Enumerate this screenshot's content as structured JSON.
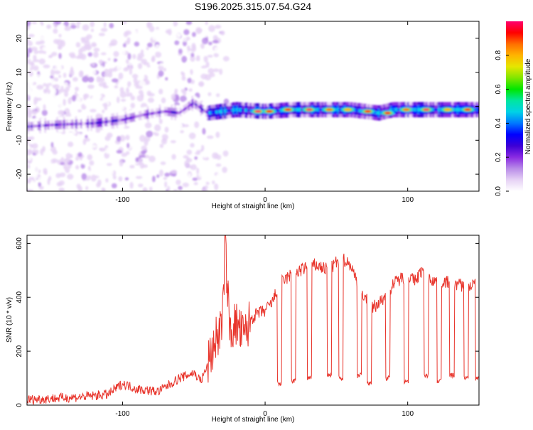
{
  "title": "S196.2025.315.07.54.G24",
  "colors": {
    "snr_line": "#e8342b",
    "colorbar": [
      "#ffffff",
      "#e6d2f5",
      "#b98ce8",
      "#8a2be2",
      "#3d00d6",
      "#0000ff",
      "#0078ff",
      "#00d2e6",
      "#00e6a0",
      "#00e600",
      "#80e600",
      "#e6e600",
      "#ffb400",
      "#ff6e00",
      "#ff0000",
      "#ff006e"
    ]
  },
  "chart_data": [
    {
      "type": "heatmap",
      "xlabel": "Height of straight line (km)",
      "ylabel": "Frequency (Hz)",
      "xlim": [
        -167,
        150
      ],
      "ylim": [
        -25,
        25
      ],
      "xticks": [
        -100,
        0,
        100
      ],
      "xtick_labels": [
        "-100",
        "0",
        "100"
      ],
      "yticks": [
        -20,
        -10,
        0,
        10,
        20
      ],
      "ytick_labels": [
        "-20",
        "-10",
        "0",
        "10",
        "20"
      ],
      "colorbar": {
        "label": "Normalized spectral amplitude",
        "range": [
          0,
          1
        ],
        "ticks": [
          0.0,
          0.2,
          0.4,
          0.6,
          0.8
        ],
        "tick_labels": [
          "0.0",
          "0.2",
          "0.4",
          "0.6",
          "0.8"
        ]
      },
      "ridge": {
        "x": [
          -167,
          -150,
          -120,
          -100,
          -85,
          -70,
          -60,
          -50,
          -40,
          -30,
          -20,
          0,
          20,
          40,
          60,
          70,
          80,
          90,
          100,
          120,
          150
        ],
        "freq": [
          -6,
          -5.5,
          -5,
          -4,
          -2.5,
          -1.5,
          -2,
          1,
          -2,
          -1.5,
          -1,
          -1.5,
          -1,
          -1,
          -1,
          -1.5,
          -2,
          -1,
          -1,
          -1,
          -1
        ]
      },
      "hotspots": [
        {
          "x": -5,
          "freq": -1.5,
          "amp": 0.95
        },
        {
          "x": 3,
          "freq": -1.5,
          "amp": 0.9
        },
        {
          "x": 16,
          "freq": -1,
          "amp": 0.9
        },
        {
          "x": 31,
          "freq": -1,
          "amp": 0.95
        },
        {
          "x": 45,
          "freq": -1,
          "amp": 0.85
        },
        {
          "x": 58,
          "freq": -1,
          "amp": 0.75
        },
        {
          "x": 72,
          "freq": -1.5,
          "amp": 0.9
        },
        {
          "x": 86,
          "freq": -2,
          "amp": 0.9
        },
        {
          "x": 99,
          "freq": -1,
          "amp": 0.85
        },
        {
          "x": 113,
          "freq": -1,
          "amp": 0.95
        },
        {
          "x": 128,
          "freq": -1,
          "amp": 0.8
        },
        {
          "x": 142,
          "freq": -1,
          "amp": 0.9
        }
      ]
    },
    {
      "type": "line",
      "xlabel": "Height of straight line (km)",
      "ylabel": "SNR (10 * v/v)",
      "xlim": [
        -167,
        150
      ],
      "ylim": [
        0,
        630
      ],
      "xticks": [
        -100,
        0,
        100
      ],
      "xtick_labels": [
        "-100",
        "0",
        "100"
      ],
      "yticks": [
        0,
        200,
        400,
        600
      ],
      "ytick_labels": [
        "0",
        "200",
        "400",
        "600"
      ],
      "series": [
        {
          "name": "SNR",
          "x": [
            -167,
            -150,
            -130,
            -110,
            -100,
            -90,
            -75,
            -60,
            -50,
            -45,
            -40,
            -35,
            -30,
            -28,
            -25,
            -20,
            -15,
            -10,
            -5,
            0,
            5,
            10,
            15,
            20,
            25,
            30,
            35,
            40,
            45,
            50,
            55,
            60,
            65,
            70,
            75,
            80,
            85,
            90,
            95,
            100,
            105,
            110,
            115,
            120,
            125,
            130,
            135,
            140,
            150
          ],
          "values": [
            20,
            25,
            30,
            40,
            80,
            60,
            50,
            100,
            120,
            90,
            150,
            240,
            300,
            610,
            280,
            300,
            250,
            320,
            340,
            350,
            380,
            450,
            470,
            490,
            500,
            510,
            520,
            510,
            500,
            530,
            540,
            520,
            450,
            400,
            360,
            380,
            410,
            450,
            470,
            480,
            460,
            500,
            470,
            460,
            460,
            450,
            450,
            440,
            450
          ]
        }
      ],
      "dropouts": [
        {
          "x": 10,
          "value": 80
        },
        {
          "x": 20,
          "value": 90
        },
        {
          "x": 31,
          "value": 100
        },
        {
          "x": 45,
          "value": 110
        },
        {
          "x": 53,
          "value": 100
        },
        {
          "x": 66,
          "value": 110
        },
        {
          "x": 73,
          "value": 80
        },
        {
          "x": 86,
          "value": 100
        },
        {
          "x": 99,
          "value": 90
        },
        {
          "x": 113,
          "value": 110
        },
        {
          "x": 122,
          "value": 90
        },
        {
          "x": 131,
          "value": 110
        },
        {
          "x": 141,
          "value": 100
        },
        {
          "x": 149,
          "value": 100
        }
      ]
    }
  ]
}
